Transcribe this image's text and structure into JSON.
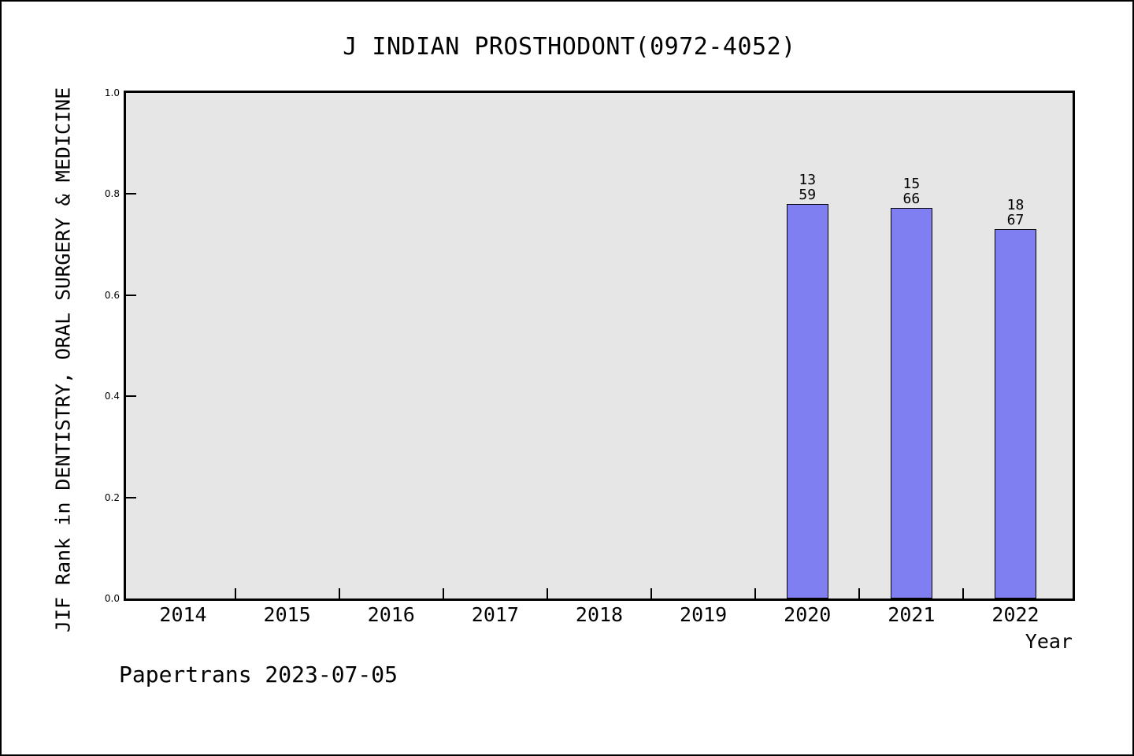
{
  "page": {
    "title": "J INDIAN PROSTHODONT(0972-4052)",
    "footer": "Papertrans 2023-07-05"
  },
  "chart_data": {
    "type": "bar",
    "title": "J INDIAN PROSTHODONT(0972-4052)",
    "xlabel": "Year",
    "ylabel": "JIF Rank in DENTISTRY, ORAL SURGERY & MEDICINE",
    "categories": [
      2014,
      2015,
      2016,
      2017,
      2018,
      2019,
      2020,
      2021,
      2022
    ],
    "ylim": [
      0.0,
      1.0
    ],
    "yticks": [
      0.0,
      0.2,
      0.4,
      0.6,
      0.8,
      1.0
    ],
    "grid": false,
    "legend": false,
    "bars": [
      {
        "year": 2020,
        "rank": 13,
        "total": 59,
        "value": 0.7797
      },
      {
        "year": 2021,
        "rank": 15,
        "total": 66,
        "value": 0.7727
      },
      {
        "year": 2022,
        "rank": 18,
        "total": 67,
        "value": 0.7313
      }
    ],
    "bar_color": "#7f7ff2",
    "bar_edge_color": "#000000",
    "plot_background": "#e6e6e6"
  }
}
